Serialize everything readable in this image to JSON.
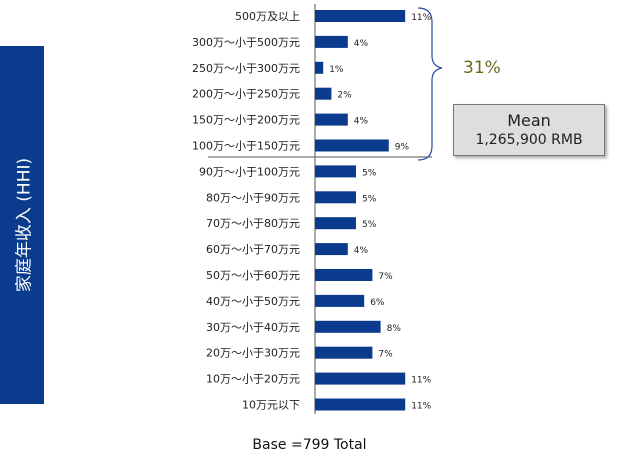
{
  "side_label": "家庭年收入 (HHI)",
  "bracket_label": "31%",
  "mean": {
    "title": "Mean",
    "value": "1,265,900 RMB"
  },
  "base_note": "Base =799 Total",
  "colors": {
    "bar": "#0b3b8c",
    "side_band": "#0b3b8c",
    "bracket": "#2a4aa0",
    "bracket_text": "#6b6b1a"
  },
  "chart_data": {
    "type": "bar",
    "orientation": "horizontal",
    "categories": [
      "500万及以上",
      "300万～小于500万元",
      "250万～小于300万元",
      "200万～小于250万元",
      "150万～小于200万元",
      "100万～小于150万元",
      "90万～小于100万元",
      "80万～小于90万元",
      "70万～小于80万元",
      "60万～小于70万元",
      "50万～小于60万元",
      "40万～小于50万元",
      "30万～小于40万元",
      "20万～小于30万元",
      "10万～小于20万元",
      "10万元以下"
    ],
    "values": [
      11,
      4,
      1,
      2,
      4,
      9,
      5,
      5,
      5,
      4,
      7,
      6,
      8,
      7,
      11,
      11
    ],
    "labels": [
      "11%",
      "4%",
      "1%",
      "2%",
      "4%",
      "9%",
      "5%",
      "5%",
      "5%",
      "4%",
      "7%",
      "6%",
      "8%",
      "7%",
      "11%",
      "11%"
    ],
    "unit": "%",
    "xlim": [
      0,
      12
    ],
    "grid": false,
    "legend": "none"
  }
}
